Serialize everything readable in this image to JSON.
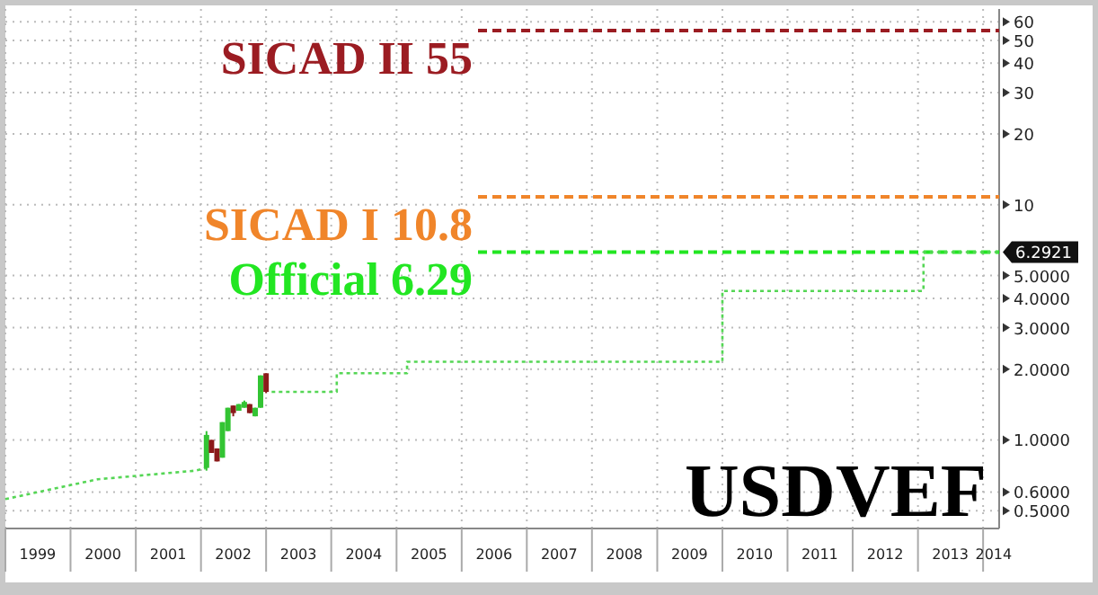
{
  "chart_data": {
    "type": "line",
    "title": "USDVEF",
    "log": true,
    "grid": true,
    "line_style": "dotted",
    "marker": "none",
    "xlim": [
      "1999-01-01",
      "2014-04-01"
    ],
    "xticks": [
      {
        "value": "1999-01-01",
        "label": null
      },
      {
        "value": "1999-07-01",
        "label": "1999"
      },
      {
        "value": "2000-01-01",
        "label": null
      },
      {
        "value": "2000-07-01",
        "label": "2000"
      },
      {
        "value": "2001-01-01",
        "label": null
      },
      {
        "value": "2001-07-01",
        "label": "2001"
      },
      {
        "value": "2002-01-01",
        "label": null
      },
      {
        "value": "2002-07-01",
        "label": "2002"
      },
      {
        "value": "2003-01-01",
        "label": null
      },
      {
        "value": "2003-07-01",
        "label": "2003"
      },
      {
        "value": "2004-01-01",
        "label": null
      },
      {
        "value": "2004-07-01",
        "label": "2004"
      },
      {
        "value": "2005-01-01",
        "label": null
      },
      {
        "value": "2005-07-01",
        "label": "2005"
      },
      {
        "value": "2006-01-01",
        "label": null
      },
      {
        "value": "2006-07-01",
        "label": "2006"
      },
      {
        "value": "2007-01-01",
        "label": null
      },
      {
        "value": "2007-07-01",
        "label": "2007"
      },
      {
        "value": "2008-01-01",
        "label": null
      },
      {
        "value": "2008-07-01",
        "label": "2008"
      },
      {
        "value": "2009-01-01",
        "label": null
      },
      {
        "value": "2009-07-01",
        "label": "2009"
      },
      {
        "value": "2010-01-01",
        "label": null
      },
      {
        "value": "2010-07-01",
        "label": "2010"
      },
      {
        "value": "2011-01-01",
        "label": null
      },
      {
        "value": "2011-07-01",
        "label": "2011"
      },
      {
        "value": "2012-01-01",
        "label": null
      },
      {
        "value": "2012-07-01",
        "label": "2012"
      },
      {
        "value": "2013-01-01",
        "label": null
      },
      {
        "value": "2013-07-01",
        "label": "2013"
      },
      {
        "value": "2014-01-01",
        "label": null
      },
      {
        "value": "2014-03-01",
        "label": "2014"
      }
    ],
    "ylim": [
      0.42,
      68
    ],
    "yticks": [
      {
        "value": 0.5,
        "label": "0.5000"
      },
      {
        "value": 0.6,
        "label": "0.6000"
      },
      {
        "value": 1,
        "label": "1.0000"
      },
      {
        "value": 2,
        "label": "2.0000"
      },
      {
        "value": 3,
        "label": "3.0000"
      },
      {
        "value": 4,
        "label": "4.0000"
      },
      {
        "value": 5,
        "label": "5.0000"
      },
      10,
      20,
      30,
      40,
      50,
      60
    ],
    "series": [
      {
        "color": "#55d655",
        "x": [
          "1999-01",
          "2000-06",
          "2001-12",
          "2002-02",
          "2002-06",
          "2003-02",
          "2004-02",
          "2004-02",
          "2005-03",
          "2005-03",
          "2010-01",
          "2010-01",
          "2013-02",
          "2013-02",
          "2014-04"
        ],
        "values": [
          0.56,
          0.68,
          0.74,
          0.76,
          null,
          1.6,
          1.6,
          1.92,
          1.92,
          2.15,
          2.15,
          4.3,
          4.3,
          6.29,
          6.29
        ]
      },
      {
        "type": "candlestick",
        "colors": [
          "#33c433",
          "#8b1a1a",
          "#8b1a1a",
          "#33c433",
          "#33c433",
          "#8b1a1a",
          "#33c433",
          "#33c433",
          "#8b1a1a",
          "#33c433",
          "#33c433",
          "#8b1a1a"
        ],
        "x": [
          "2002-02",
          "2002-03",
          "2002-04",
          "2002-05",
          "2002-06",
          "2002-07",
          "2002-08",
          "2002-09",
          "2002-10",
          "2002-11",
          "2002-12",
          "2003-01"
        ],
        "ohlc": [
          [
            0.76,
            1.09,
            0.74,
            1.05
          ],
          [
            1.0,
            1.0,
            0.88,
            0.88
          ],
          [
            0.92,
            0.92,
            0.81,
            0.81
          ],
          [
            0.84,
            1.19,
            0.84,
            1.19
          ],
          [
            1.09,
            1.37,
            1.09,
            1.37
          ],
          [
            1.4,
            1.4,
            1.26,
            1.3
          ],
          [
            1.33,
            1.42,
            1.33,
            1.42
          ],
          [
            1.37,
            1.47,
            1.37,
            1.45
          ],
          [
            1.42,
            1.42,
            1.3,
            1.3
          ],
          [
            1.26,
            1.37,
            1.26,
            1.37
          ],
          [
            1.37,
            1.88,
            1.37,
            1.88
          ],
          [
            1.92,
            1.92,
            1.58,
            1.6
          ]
        ]
      }
    ],
    "ref_lines": [
      {
        "axis": "y",
        "value": 55,
        "label": "SICAD II 55",
        "color": "#9b1c22",
        "line_style": "dashed"
      },
      {
        "axis": "y",
        "value": 10.8,
        "label": "SICAD I 10.8",
        "color": "#f0852a",
        "line_style": "dashed"
      },
      {
        "axis": "y",
        "value": 6.29,
        "label": "Official 6.29",
        "color": "#22e622",
        "line_style": "dashed"
      }
    ],
    "annotations": [
      "6.2921"
    ]
  }
}
